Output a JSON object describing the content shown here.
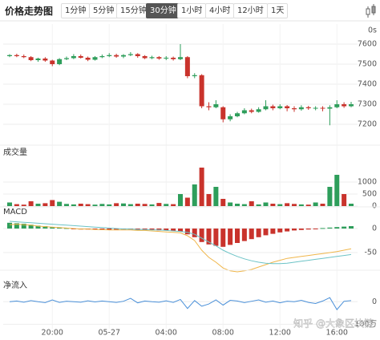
{
  "header": {
    "title": "价格走势图",
    "tabs": [
      "1分钟",
      "5分钟",
      "15分钟",
      "30分钟",
      "1小时",
      "4小时",
      "12小时",
      "1天"
    ],
    "active_tab": 3
  },
  "watermark": "知乎 @大象区块链",
  "chart_data": [
    {
      "type": "candlestick",
      "countdown": "0s",
      "up_color": "#2e9e5b",
      "down_color": "#c9332c",
      "grid": true,
      "categories": [
        null,
        null,
        null,
        null,
        null,
        null,
        "20:00",
        null,
        null,
        null,
        null,
        null,
        null,
        null,
        "05-27",
        null,
        null,
        null,
        null,
        null,
        null,
        null,
        "04:00",
        null,
        null,
        null,
        null,
        null,
        null,
        null,
        "08:00",
        null,
        null,
        null,
        null,
        null,
        null,
        null,
        "12:00",
        null,
        null,
        null,
        null,
        null,
        null,
        null,
        "16:00",
        null,
        null
      ],
      "open": [
        7540,
        7545,
        7540,
        7535,
        7520,
        7528,
        7518,
        7500,
        7525,
        7530,
        7540,
        7532,
        7522,
        7535,
        7540,
        7545,
        7538,
        7545,
        7550,
        7540,
        7530,
        7535,
        7528,
        7532,
        7525,
        7535,
        7440,
        7445,
        7290,
        7285,
        7285,
        7225,
        7240,
        7255,
        7270,
        7262,
        7275,
        7290,
        7280,
        7290,
        7280,
        7275,
        7285,
        7280,
        7282,
        7278,
        7285,
        7300,
        7290
      ],
      "high": [
        7550,
        7552,
        7548,
        7540,
        7532,
        7535,
        7522,
        7530,
        7538,
        7550,
        7548,
        7538,
        7540,
        7548,
        7555,
        7552,
        7550,
        7560,
        7555,
        7545,
        7542,
        7540,
        7540,
        7538,
        7600,
        7540,
        7455,
        7450,
        7310,
        7320,
        7290,
        7250,
        7262,
        7280,
        7278,
        7285,
        7320,
        7298,
        7300,
        7296,
        7290,
        7295,
        7292,
        7290,
        7290,
        7295,
        7320,
        7310,
        7312
      ],
      "low": [
        7535,
        7535,
        7530,
        7515,
        7512,
        7512,
        7490,
        7495,
        7520,
        7525,
        7528,
        7515,
        7518,
        7530,
        7535,
        7532,
        7530,
        7540,
        7532,
        7525,
        7525,
        7522,
        7520,
        7518,
        7520,
        7430,
        7430,
        7280,
        7270,
        7280,
        7210,
        7215,
        7235,
        7250,
        7255,
        7258,
        7270,
        7270,
        7275,
        7265,
        7262,
        7268,
        7272,
        7270,
        7265,
        7195,
        7280,
        7282,
        7285
      ],
      "close": [
        7545,
        7540,
        7535,
        7520,
        7528,
        7518,
        7500,
        7525,
        7530,
        7540,
        7532,
        7522,
        7535,
        7540,
        7545,
        7538,
        7545,
        7550,
        7540,
        7530,
        7535,
        7528,
        7532,
        7525,
        7535,
        7440,
        7445,
        7290,
        7285,
        7300,
        7225,
        7240,
        7255,
        7270,
        7262,
        7275,
        7290,
        7280,
        7290,
        7280,
        7275,
        7285,
        7280,
        7282,
        7278,
        7285,
        7300,
        7290,
        7300
      ],
      "ylim": [
        7140,
        7700
      ],
      "yticks": [
        7200,
        7300,
        7400,
        7500,
        7600
      ]
    },
    {
      "type": "bar",
      "title": "成交量",
      "values": [
        150,
        80,
        60,
        200,
        100,
        120,
        250,
        180,
        90,
        70,
        100,
        80,
        60,
        90,
        70,
        120,
        110,
        80,
        100,
        90,
        70,
        130,
        90,
        80,
        500,
        350,
        900,
        1600,
        500,
        800,
        300,
        150,
        100,
        80,
        200,
        70,
        150,
        100,
        80,
        120,
        90,
        70,
        60,
        150,
        100,
        800,
        1300,
        500,
        100
      ],
      "ylim": [
        0,
        1600
      ],
      "yticks": [
        0,
        500,
        1000
      ]
    },
    {
      "type": "macd",
      "title": "MACD",
      "up_color": "#2e9e5b",
      "down_color": "#c9332c",
      "histogram": [
        12,
        11,
        10,
        8,
        6,
        5,
        3,
        2,
        1,
        -1,
        -2,
        -2,
        -2,
        -3,
        -3,
        -3,
        -2,
        -2,
        -3,
        -3,
        -3,
        -4,
        -4,
        -5,
        -6,
        -12,
        -18,
        -28,
        -33,
        -36,
        -38,
        -34,
        -30,
        -26,
        -22,
        -18,
        -14,
        -11,
        -8,
        -6,
        -4,
        -3,
        -2,
        -1,
        1,
        2,
        3,
        4,
        5
      ],
      "series": [
        {
          "color": "#f0b64a",
          "values": [
            8,
            9,
            8,
            7,
            5,
            4,
            3,
            2,
            1,
            0,
            -1,
            -1,
            -2,
            -2,
            -3,
            -3,
            -3,
            -3,
            -4,
            -4,
            -5,
            -6,
            -7,
            -8,
            -9,
            -15,
            -25,
            -45,
            -60,
            -70,
            -82,
            -88,
            -90,
            -88,
            -85,
            -80,
            -75,
            -70,
            -66,
            -62,
            -60,
            -58,
            -56,
            -54,
            -52,
            -50,
            -48,
            -45,
            -42
          ]
        },
        {
          "color": "#6cc3c6",
          "values": [
            15,
            14,
            13,
            12,
            11,
            10,
            9,
            8,
            7,
            6,
            5,
            4,
            3,
            2,
            1,
            0,
            -1,
            -1,
            -2,
            -2,
            -3,
            -3,
            -4,
            -5,
            -6,
            -8,
            -12,
            -20,
            -28,
            -36,
            -45,
            -52,
            -58,
            -63,
            -67,
            -70,
            -72,
            -73,
            -73,
            -72,
            -70,
            -68,
            -66,
            -64,
            -62,
            -60,
            -58,
            -56,
            -54
          ]
        }
      ],
      "ylim": [
        -100,
        25
      ],
      "yticks": [
        -50,
        0
      ]
    },
    {
      "type": "line",
      "title": "净流入",
      "color": "#4a90d9",
      "values": [
        0,
        3,
        -2,
        5,
        0,
        -4,
        8,
        -3,
        2,
        0,
        -2,
        4,
        -1,
        3,
        0,
        -3,
        2,
        15,
        -5,
        3,
        0,
        -2,
        4,
        -3,
        10,
        -30,
        5,
        -20,
        -10,
        8,
        -15,
        6,
        3,
        -4,
        2,
        8,
        -2,
        3,
        -5,
        2,
        0,
        6,
        -3,
        -8,
        3,
        18,
        -35,
        2,
        5
      ],
      "ylim": [
        -120,
        40
      ],
      "yticks": [
        0,
        {
          "value": -100,
          "label": "-100万"
        }
      ]
    }
  ]
}
